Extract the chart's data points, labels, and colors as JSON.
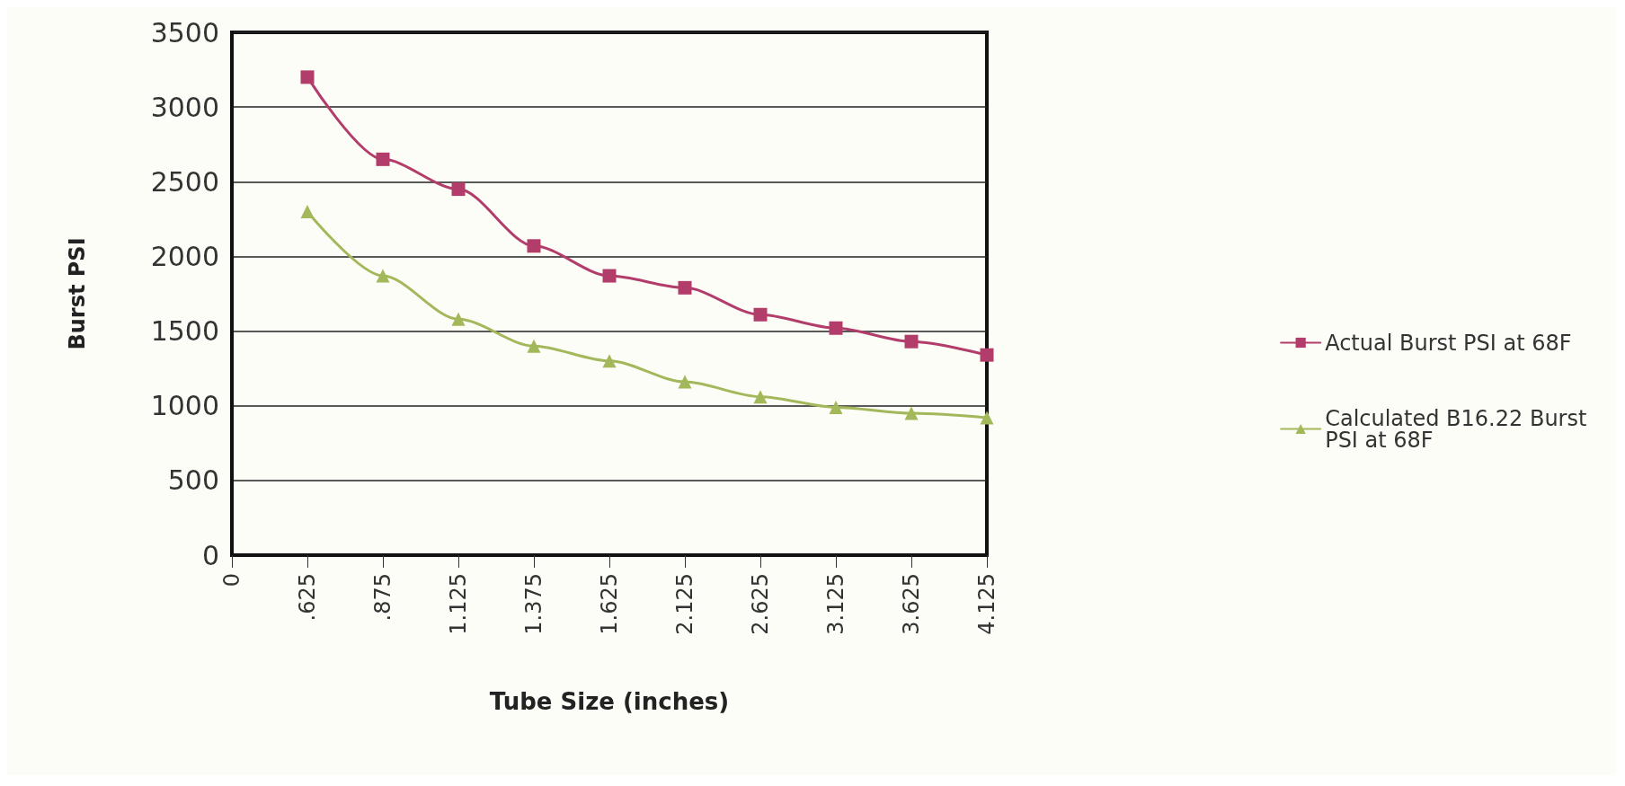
{
  "chart_data": {
    "type": "line",
    "xlabel": "Tube Size (inches)",
    "ylabel": "Burst PSI",
    "categories": [
      "0",
      ".625",
      ".875",
      "1.125",
      "1.375",
      "1.625",
      "2.125",
      "2.625",
      "3.125",
      "3.625",
      "4.125"
    ],
    "series": [
      {
        "name": "Actual Burst PSI at 68F",
        "color": "#b23c6a",
        "marker": "square",
        "values": [
          null,
          3200,
          2650,
          2450,
          2070,
          1870,
          1790,
          1610,
          1520,
          1430,
          1340
        ]
      },
      {
        "name": "Calculated B16.22 Burst PSI at 68F",
        "color": "#a3b85a",
        "marker": "triangle",
        "values": [
          null,
          2300,
          1870,
          1580,
          1400,
          1300,
          1160,
          1060,
          990,
          950,
          920
        ]
      }
    ],
    "ylim": [
      0,
      3500
    ],
    "yticks": [
      0,
      500,
      1000,
      1500,
      2000,
      2500,
      3000,
      3500
    ],
    "grid": "y",
    "legend": "right",
    "line_style": "solid"
  }
}
